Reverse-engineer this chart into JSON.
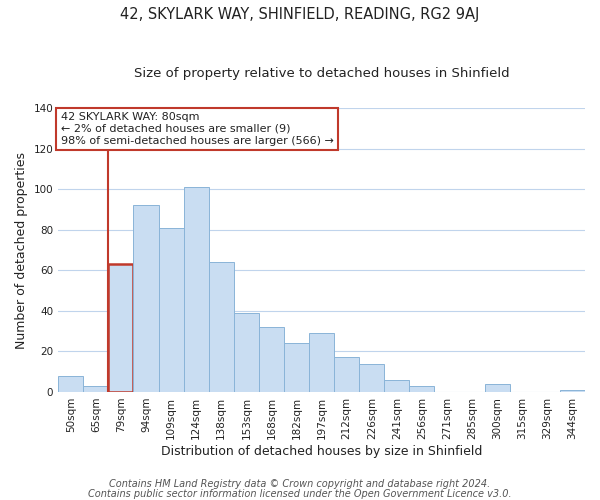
{
  "title1": "42, SKYLARK WAY, SHINFIELD, READING, RG2 9AJ",
  "title2": "Size of property relative to detached houses in Shinfield",
  "xlabel": "Distribution of detached houses by size in Shinfield",
  "ylabel": "Number of detached properties",
  "bar_labels": [
    "50sqm",
    "65sqm",
    "79sqm",
    "94sqm",
    "109sqm",
    "124sqm",
    "138sqm",
    "153sqm",
    "168sqm",
    "182sqm",
    "197sqm",
    "212sqm",
    "226sqm",
    "241sqm",
    "256sqm",
    "271sqm",
    "285sqm",
    "300sqm",
    "315sqm",
    "329sqm",
    "344sqm"
  ],
  "bar_heights": [
    8,
    3,
    63,
    92,
    81,
    101,
    64,
    39,
    32,
    24,
    29,
    17,
    14,
    6,
    3,
    0,
    0,
    4,
    0,
    0,
    1
  ],
  "bar_color": "#c9ddf2",
  "bar_edge_color": "#8ab4d8",
  "highlight_bar_index": 2,
  "highlight_edge_color": "#c0392b",
  "vline_color": "#c0392b",
  "annotation_title": "42 SKYLARK WAY: 80sqm",
  "annotation_line1": "← 2% of detached houses are smaller (9)",
  "annotation_line2": "98% of semi-detached houses are larger (566) →",
  "annotation_box_edge": "#c0392b",
  "footer1": "Contains HM Land Registry data © Crown copyright and database right 2024.",
  "footer2": "Contains public sector information licensed under the Open Government Licence v3.0.",
  "ylim": [
    0,
    140
  ],
  "yticks": [
    0,
    20,
    40,
    60,
    80,
    100,
    120,
    140
  ],
  "bg_color": "#ffffff",
  "grid_color": "#c0d4ec",
  "title1_fontsize": 10.5,
  "title2_fontsize": 9.5,
  "axis_label_fontsize": 9,
  "tick_fontsize": 7.5,
  "footer_fontsize": 7
}
